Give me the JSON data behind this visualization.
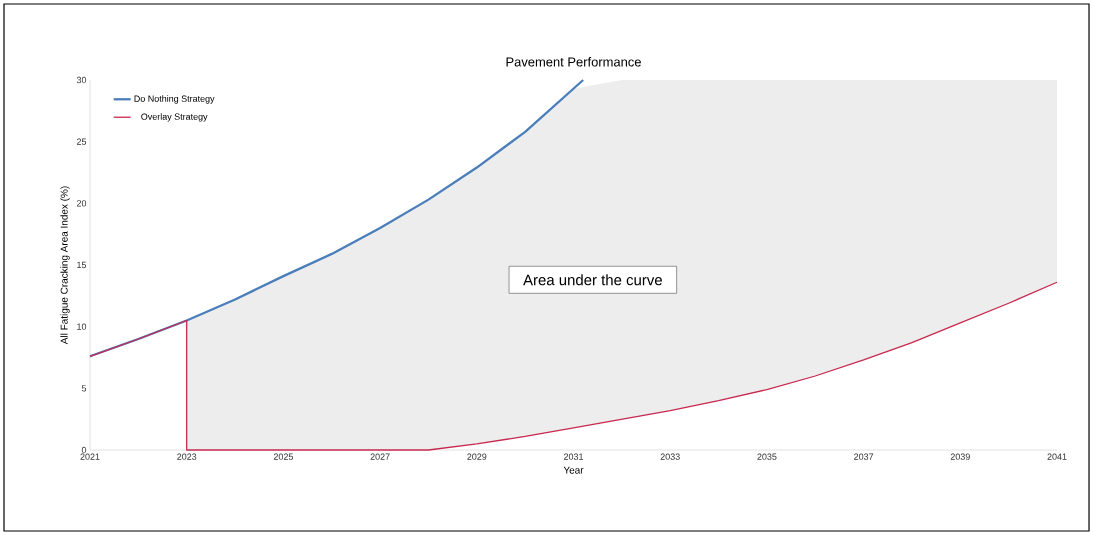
{
  "chart_data": {
    "type": "line",
    "title": "Pavement Performance",
    "xlabel": "Year",
    "ylabel": "All Fatigue Cracking Area Index (%)",
    "annotations": [
      "Area under the curve"
    ],
    "xlim": [
      2021,
      2041
    ],
    "xticks": [
      2021,
      2023,
      2025,
      2027,
      2029,
      2031,
      2033,
      2035,
      2037,
      2039,
      2041
    ],
    "ylim": [
      0,
      30
    ],
    "yticks": [
      0,
      5,
      10,
      15,
      20,
      25,
      30
    ],
    "legend": "top left",
    "grid": false,
    "marker": "none",
    "line_style": "solid",
    "series": [
      {
        "name": "Do Nothing Strategy",
        "color": "#4a7ebb",
        "x": [
          2021,
          2022,
          2023,
          2024,
          2025,
          2026,
          2027,
          2028,
          2029,
          2030,
          2031.2
        ],
        "values": [
          7.6,
          9.0,
          10.5,
          12.2,
          14.1,
          15.9,
          18.0,
          20.3,
          22.9,
          25.8,
          30
        ]
      },
      {
        "name": "Overlay Strategy",
        "color": "#c8274f",
        "x": [
          2021,
          2022,
          2023,
          2023,
          2024,
          2025,
          2026,
          2027,
          2028,
          2029,
          2030,
          2031,
          2032,
          2033,
          2034,
          2035,
          2036,
          2037,
          2038,
          2039,
          2040,
          2041
        ],
        "values": [
          7.6,
          9.0,
          10.5,
          0,
          0,
          0,
          0,
          0,
          0,
          0.5,
          1.1,
          1.8,
          2.5,
          3.2,
          4.0,
          4.9,
          6.0,
          7.3,
          8.7,
          10.3,
          11.9,
          13.6
        ],
        "lower": [
          null,
          null,
          null,
          0,
          0,
          0,
          0,
          0,
          0,
          0.5,
          1.1,
          1.8,
          2.5,
          3.2,
          4.0,
          4.9,
          6.0,
          7.3,
          8.7,
          10.3,
          11.9,
          13.6
        ],
        "upper": [
          null,
          null,
          null,
          10.5,
          12.2,
          14.1,
          15.9,
          18.0,
          20.3,
          22.9,
          25.8,
          29.3,
          30,
          30,
          30,
          30,
          30,
          30,
          30,
          30,
          30,
          30
        ]
      }
    ]
  }
}
